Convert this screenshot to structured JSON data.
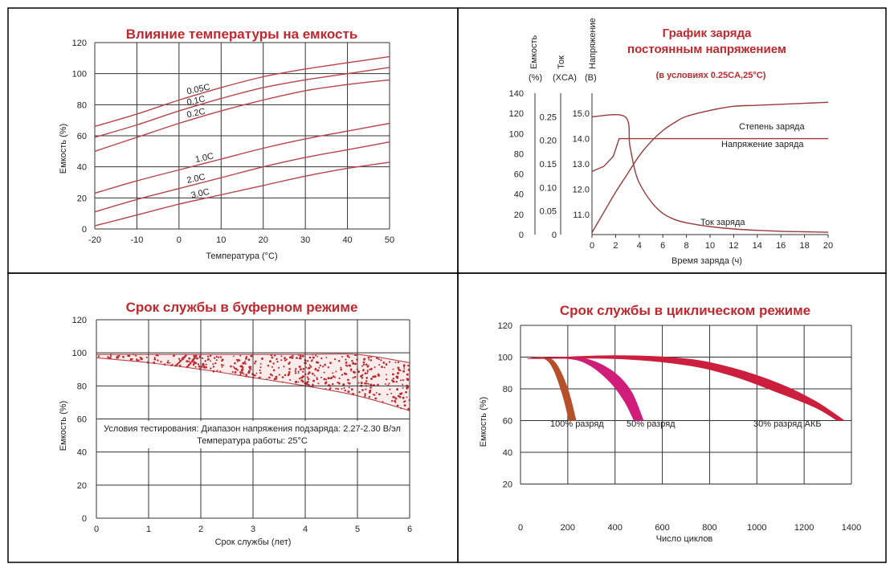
{
  "chart_data": [
    {
      "type": "line",
      "title": "Влияние температуры на емкость",
      "xlabel": "Температура (°C)",
      "ylabel": "Емкость (%)",
      "xlim": [
        -20,
        50
      ],
      "ylim": [
        0,
        120
      ],
      "x_ticks": [
        "-20",
        "-10",
        "0",
        "10",
        "20",
        "30",
        "40",
        "50"
      ],
      "y_ticks": [
        "0",
        "20",
        "40",
        "60",
        "80",
        "100",
        "120"
      ],
      "grid": true,
      "color": "#b8444a",
      "series": [
        {
          "name": "0.05C",
          "points": [
            [
              -20,
              66
            ],
            [
              -10,
              74
            ],
            [
              0,
              83
            ],
            [
              10,
              91
            ],
            [
              20,
              98
            ],
            [
              30,
              103
            ],
            [
              40,
              107
            ],
            [
              50,
              111
            ]
          ]
        },
        {
          "name": "0.1C",
          "points": [
            [
              -20,
              59
            ],
            [
              -10,
              67
            ],
            [
              0,
              76
            ],
            [
              10,
              84
            ],
            [
              20,
              91
            ],
            [
              30,
              96
            ],
            [
              40,
              100
            ],
            [
              50,
              104
            ]
          ]
        },
        {
          "name": "0.2C",
          "points": [
            [
              -20,
              50
            ],
            [
              -10,
              59
            ],
            [
              0,
              68
            ],
            [
              10,
              76
            ],
            [
              20,
              83
            ],
            [
              30,
              89
            ],
            [
              40,
              93
            ],
            [
              50,
              96
            ]
          ]
        },
        {
          "name": "1.0C",
          "points": [
            [
              -20,
              23
            ],
            [
              -10,
              31
            ],
            [
              0,
              38
            ],
            [
              10,
              45
            ],
            [
              20,
              52
            ],
            [
              30,
              58
            ],
            [
              40,
              63
            ],
            [
              50,
              68
            ]
          ]
        },
        {
          "name": "2.0C",
          "points": [
            [
              -20,
              11
            ],
            [
              -10,
              19
            ],
            [
              0,
              26
            ],
            [
              10,
              33
            ],
            [
              20,
              40
            ],
            [
              30,
              46
            ],
            [
              40,
              51
            ],
            [
              50,
              56
            ]
          ]
        },
        {
          "name": "3.0C",
          "points": [
            [
              -20,
              2
            ],
            [
              -10,
              9
            ],
            [
              0,
              16
            ],
            [
              10,
              22
            ],
            [
              20,
              28
            ],
            [
              30,
              34
            ],
            [
              40,
              39
            ],
            [
              50,
              43
            ]
          ]
        }
      ],
      "label_anchor_x": {
        "0.05C": 2,
        "0.1C": 2,
        "0.2C": 2,
        "1.0C": 4,
        "2.0C": 2,
        "3.0C": 3
      }
    },
    {
      "type": "line",
      "title": "График заряда",
      "title_line2": "постоянным напряжением",
      "subtitle": "(в условиях 0.25CA,25°C)",
      "xlabel": "Время заряда (ч)",
      "xlim": [
        0,
        20
      ],
      "x_ticks": [
        "0",
        "2",
        "4",
        "6",
        "8",
        "10",
        "12",
        "14",
        "16",
        "18",
        "20"
      ],
      "axes": [
        {
          "name": "Емкость",
          "unit": "(%)",
          "ticks": [
            "0",
            "20",
            "40",
            "60",
            "80",
            "100",
            "120",
            "140"
          ],
          "range": [
            0,
            140
          ]
        },
        {
          "name": "Ток",
          "unit": "(XCA)",
          "ticks": [
            "0",
            "0.05",
            "0.10",
            "0.15",
            "0.20",
            "0.25"
          ],
          "range": [
            0,
            0.3
          ]
        },
        {
          "name": "Напряжение",
          "unit": "(B)",
          "ticks": [
            "11.0",
            "12.0",
            "13.0",
            "14.0",
            "15.0"
          ],
          "range": [
            10.2,
            15.8
          ]
        }
      ],
      "grid": false,
      "color": "#9b3a3a",
      "series": [
        {
          "name": "Степень заряда",
          "axis": "Емкость",
          "points": [
            [
              0,
              2
            ],
            [
              1,
              22
            ],
            [
              2,
              42
            ],
            [
              3,
              60
            ],
            [
              4,
              78
            ],
            [
              5,
              92
            ],
            [
              6,
              103
            ],
            [
              7,
              111
            ],
            [
              8,
              117
            ],
            [
              10,
              123
            ],
            [
              12,
              127
            ],
            [
              14,
              128
            ],
            [
              16,
              129
            ],
            [
              18,
              130
            ],
            [
              20,
              131
            ]
          ]
        },
        {
          "name": "Напряжение заряда",
          "axis": "Напряжение",
          "points": [
            [
              0,
              12.7
            ],
            [
              1.0,
              12.9
            ],
            [
              1.8,
              13.3
            ],
            [
              2.3,
              14.0
            ],
            [
              3,
              14.0
            ],
            [
              20,
              14.0
            ]
          ]
        },
        {
          "name": "Ток заряда",
          "axis": "Ток",
          "points": [
            [
              0,
              0.25
            ],
            [
              2.8,
              0.25
            ],
            [
              3.2,
              0.19
            ],
            [
              3.6,
              0.14
            ],
            [
              4,
              0.11
            ],
            [
              5,
              0.07
            ],
            [
              6,
              0.045
            ],
            [
              7,
              0.032
            ],
            [
              8,
              0.025
            ],
            [
              10,
              0.017
            ],
            [
              12,
              0.012
            ],
            [
              14,
              0.009
            ],
            [
              16,
              0.007
            ],
            [
              18,
              0.006
            ],
            [
              20,
              0.005
            ]
          ]
        }
      ]
    },
    {
      "type": "area",
      "title": "Срок службы в буферном режиме",
      "xlabel": "Срок службы (лет)",
      "ylabel": "Емкость (%)",
      "xlim": [
        0,
        6
      ],
      "ylim": [
        0,
        120
      ],
      "x_ticks": [
        "0",
        "1",
        "2",
        "3",
        "4",
        "5",
        "6"
      ],
      "y_ticks": [
        "0",
        "20",
        "40",
        "60",
        "80",
        "100",
        "120"
      ],
      "grid": true,
      "color": "#b8444a",
      "upper": [
        [
          0,
          99
        ],
        [
          1,
          99
        ],
        [
          2,
          99
        ],
        [
          3,
          99
        ],
        [
          4,
          99
        ],
        [
          5,
          99
        ],
        [
          6,
          94
        ]
      ],
      "lower": [
        [
          0,
          97
        ],
        [
          1,
          94
        ],
        [
          2,
          90
        ],
        [
          3,
          85
        ],
        [
          4,
          80
        ],
        [
          5,
          74
        ],
        [
          6,
          65
        ]
      ],
      "annotation_line1": "Условия тестирования: Диапазон напряжения подзаряда: 2.27-2.30 В/эл",
      "annotation_line2": "Температура работы: 25°C"
    },
    {
      "type": "area",
      "title": "Срок службы в циклическом режиме",
      "xlabel": "Число циклов",
      "ylabel": "Емкость (%)",
      "xlim": [
        0,
        1400
      ],
      "ylim": [
        0,
        120
      ],
      "x_ticks": [
        "0",
        "200",
        "400",
        "600",
        "800",
        "1000",
        "1200",
        "1400"
      ],
      "y_ticks": [
        "20",
        "40",
        "60",
        "80",
        "100",
        "120"
      ],
      "grid": true,
      "series": [
        {
          "name": "100% разряд",
          "color": "#b5502a",
          "upper": [
            [
              30,
              99
            ],
            [
              100,
              100
            ],
            [
              150,
              96
            ],
            [
              200,
              80
            ],
            [
              235,
              60
            ]
          ],
          "lower": [
            [
              30,
              99
            ],
            [
              100,
              99
            ],
            [
              140,
              92
            ],
            [
              180,
              75
            ],
            [
              205,
              60
            ]
          ]
        },
        {
          "name": "50% разряд",
          "color": "#d01d7a",
          "upper": [
            [
              30,
              99
            ],
            [
              200,
              100
            ],
            [
              300,
              98
            ],
            [
              400,
              90
            ],
            [
              470,
              78
            ],
            [
              520,
              60
            ]
          ],
          "lower": [
            [
              30,
              99
            ],
            [
              200,
              99
            ],
            [
              290,
              95
            ],
            [
              380,
              84
            ],
            [
              440,
              72
            ],
            [
              480,
              60
            ]
          ]
        },
        {
          "name": "30% разряд АКБ",
          "color": "#cc1f3d",
          "upper": [
            [
              30,
              99
            ],
            [
              400,
              101
            ],
            [
              700,
              99
            ],
            [
              900,
              93
            ],
            [
              1100,
              83
            ],
            [
              1250,
              72
            ],
            [
              1370,
              60
            ]
          ],
          "lower": [
            [
              30,
              99
            ],
            [
              400,
              99
            ],
            [
              700,
              95
            ],
            [
              900,
              88
            ],
            [
              1100,
              77
            ],
            [
              1250,
              68
            ],
            [
              1340,
              60
            ]
          ]
        }
      ]
    }
  ]
}
